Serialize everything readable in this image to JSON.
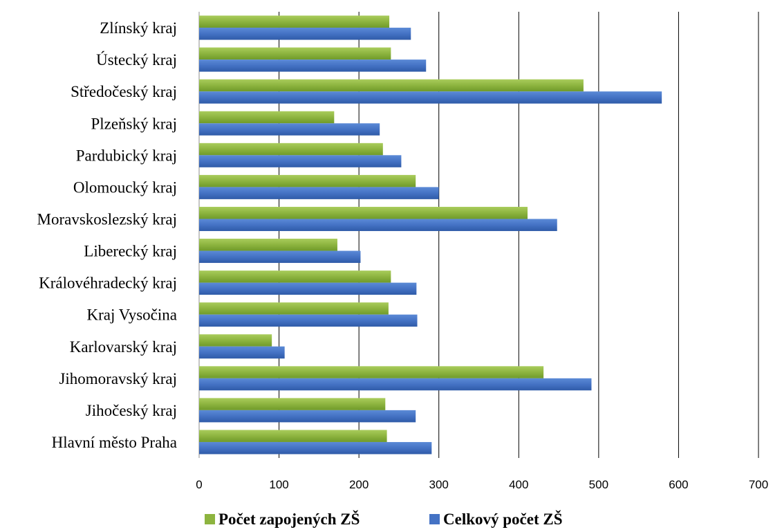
{
  "chart_data": {
    "type": "bar",
    "orientation": "horizontal",
    "title": "",
    "xlabel": "",
    "ylabel": "",
    "xlim": [
      0,
      700
    ],
    "ticks": [
      "0",
      "100",
      "200",
      "300",
      "400",
      "500",
      "600",
      "700"
    ],
    "tick_values": [
      0,
      100,
      200,
      300,
      400,
      500,
      600,
      700
    ],
    "grid": "vertical",
    "legend_position": "bottom",
    "categories": [
      "Zlínský kraj",
      "Ústecký kraj",
      "Středočeský kraj",
      "Plzeňský kraj",
      "Pardubický kraj",
      "Olomoucký kraj",
      "Moravskoslezský kraj",
      "Liberecký kraj",
      "Královéhradecký kraj",
      "Kraj Vysočina",
      "Karlovarský kraj",
      "Jihomoravský kraj",
      "Jihočeský kraj",
      "Hlavní město Praha"
    ],
    "series": [
      {
        "name": "Počet zapojených ZŠ",
        "color": "#8db43f",
        "values": [
          238,
          240,
          481,
          169,
          230,
          271,
          411,
          173,
          240,
          237,
          91,
          431,
          233,
          235
        ]
      },
      {
        "name": "Celkový počet ZŠ",
        "color": "#4472c4",
        "values": [
          265,
          284,
          579,
          226,
          253,
          300,
          448,
          202,
          272,
          273,
          107,
          491,
          271,
          291
        ]
      }
    ]
  }
}
